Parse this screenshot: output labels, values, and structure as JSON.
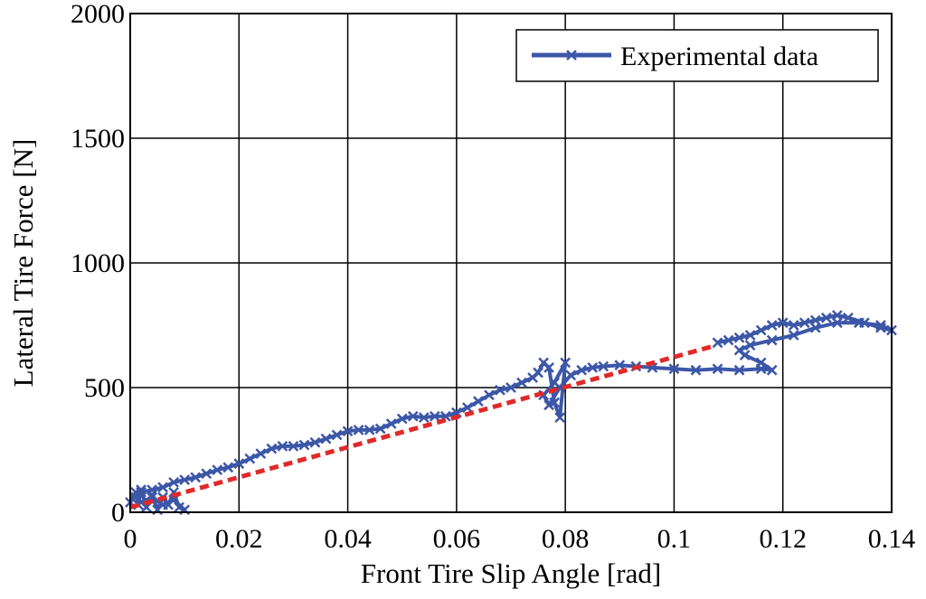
{
  "chart_data": {
    "type": "line",
    "title": "",
    "xlabel": "Front Tire Slip Angle [rad]",
    "ylabel": "Lateral Tire Force [N]",
    "xlim": [
      0,
      0.14
    ],
    "ylim": [
      0,
      2000
    ],
    "x_ticks": [
      0,
      0.02,
      0.04,
      0.06,
      0.08,
      0.1,
      0.12,
      0.14
    ],
    "x_tick_labels": [
      "0",
      "0.02",
      "0.04",
      "0.06",
      "0.08",
      "0.1",
      "0.12",
      "0.14"
    ],
    "y_ticks": [
      0,
      500,
      1000,
      1500,
      2000
    ],
    "y_tick_labels": [
      "0",
      "500",
      "1000",
      "1500",
      "2000"
    ],
    "grid": true,
    "legend": {
      "position": "top-right",
      "entries": [
        "Experimental data"
      ]
    },
    "series": [
      {
        "name": "Experimental data",
        "color": "#3c57a8",
        "marker": "x",
        "x": [
          0,
          0.001,
          0.0015,
          0.002,
          0.003,
          0.004,
          0.005,
          0.006,
          0.007,
          0.008,
          0.009,
          0.01,
          0.008,
          0.006,
          0.004,
          0.002,
          0.001,
          0.002,
          0.004,
          0.006,
          0.008,
          0.01,
          0.012,
          0.014,
          0.016,
          0.018,
          0.02,
          0.022,
          0.024,
          0.026,
          0.028,
          0.03,
          0.032,
          0.034,
          0.036,
          0.038,
          0.04,
          0.042,
          0.044,
          0.046,
          0.048,
          0.05,
          0.052,
          0.054,
          0.056,
          0.058,
          0.06,
          0.062,
          0.064,
          0.066,
          0.068,
          0.07,
          0.072,
          0.074,
          0.075,
          0.076,
          0.077,
          0.078,
          0.079,
          0.08,
          0.078,
          0.076,
          0.077,
          0.079,
          0.081,
          0.083,
          0.085,
          0.087,
          0.09,
          0.093,
          0.096,
          0.1,
          0.104,
          0.108,
          0.112,
          0.116,
          0.118,
          0.116,
          0.113,
          0.112,
          0.114,
          0.118,
          0.122,
          0.126,
          0.13,
          0.134,
          0.138,
          0.14,
          0.138,
          0.135,
          0.132,
          0.13,
          0.128,
          0.126,
          0.124,
          0.122,
          0.12,
          0.118,
          0.116,
          0.114,
          0.112,
          0.11,
          0.108
        ],
        "y": [
          40,
          80,
          30,
          90,
          20,
          70,
          10,
          60,
          30,
          80,
          20,
          10,
          50,
          30,
          60,
          40,
          60,
          80,
          90,
          100,
          120,
          130,
          140,
          155,
          170,
          180,
          195,
          215,
          235,
          255,
          265,
          265,
          270,
          280,
          295,
          310,
          325,
          330,
          330,
          335,
          355,
          375,
          385,
          380,
          385,
          385,
          400,
          420,
          445,
          470,
          490,
          500,
          520,
          540,
          560,
          600,
          580,
          440,
          380,
          600,
          520,
          470,
          430,
          500,
          550,
          570,
          580,
          585,
          590,
          585,
          580,
          575,
          570,
          575,
          570,
          575,
          570,
          600,
          630,
          650,
          670,
          690,
          710,
          740,
          760,
          760,
          750,
          730,
          740,
          760,
          780,
          790,
          780,
          770,
          760,
          750,
          760,
          750,
          730,
          710,
          700,
          690,
          680
        ]
      },
      {
        "name": "",
        "color": "#e02a2a",
        "style": "dashed",
        "x": [
          0,
          0.107
        ],
        "y": [
          20,
          665
        ]
      }
    ]
  }
}
